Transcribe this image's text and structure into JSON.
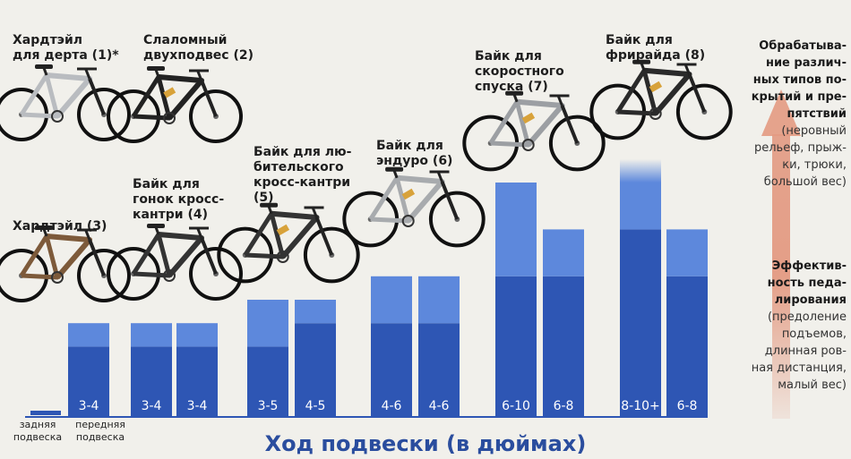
{
  "chart_data": {
    "type": "bar",
    "title": "",
    "xlabel": "Ход подвески (в дюймах)",
    "ylabel": "",
    "legend": {
      "rear": "задняя\nподвеска",
      "front": "передняя\nподвеска"
    },
    "categories": [
      {
        "label": "Хардтэйл\nдля дерта (1)*"
      },
      {
        "label": "Слаломный\nдвухподвес (2)"
      },
      {
        "label": "Хардтэйл (3)"
      },
      {
        "label": "Байк для\nгонок кросс-\nкантри (4)"
      },
      {
        "label": "Байк для лю-\nбительского\nкросс-кантри\n(5)"
      },
      {
        "label": "Байк для\nэндуро (6)"
      },
      {
        "label": "Байк для\nскоростного\nспуска (7)"
      },
      {
        "label": "Байк для\nфрирайда (8)"
      }
    ],
    "bars": [
      {
        "rear": "",
        "front": "3-4",
        "rear_range": [
          0,
          0
        ],
        "front_range": [
          3,
          4
        ]
      },
      {
        "rear": "3-4",
        "front": "3-4",
        "rear_range": [
          3,
          4
        ],
        "front_range": [
          3,
          4
        ]
      },
      {
        "rear": "3-5",
        "front": "4-5",
        "rear_range": [
          3,
          5
        ],
        "front_range": [
          4,
          5
        ]
      },
      {
        "rear": "4-6",
        "front": "4-6",
        "rear_range": [
          4,
          6
        ],
        "front_range": [
          4,
          6
        ]
      },
      {
        "rear": "6-10",
        "front": "6-8",
        "rear_range": [
          6,
          10
        ],
        "front_range": [
          6,
          8
        ]
      },
      {
        "rear": "8-10+",
        "front": "6-8",
        "rear_range": [
          8,
          11
        ],
        "front_range": [
          6,
          8
        ]
      }
    ],
    "colors": {
      "dark": "#2e56b4",
      "light": "#5d88dc",
      "arrow": "#e39a82"
    }
  },
  "side": {
    "top_heading": "Обрабатыва-\nние различ-\nных типов по-\nкрытий и пре-\nпятствий",
    "top_note": "(неровный\nрельеф, прыж-\nки, трюки,\nбольшой вес)",
    "bottom_heading": "Эффектив-\nность педа-\nлирования",
    "bottom_note": "(предоление\nподъемов,\nдлинная ров-\nная дистанция,\nмалый вес)"
  }
}
